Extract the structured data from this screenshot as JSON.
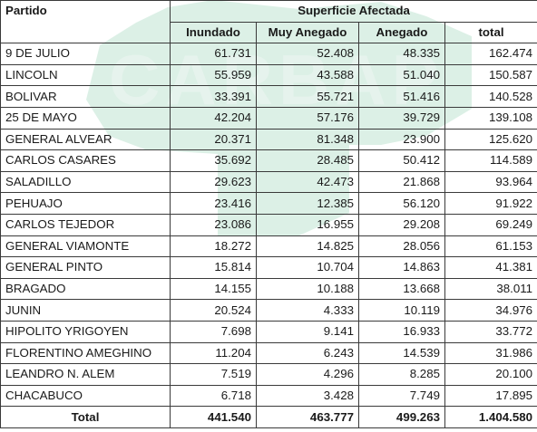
{
  "table": {
    "header": {
      "partido": "Partido",
      "group": "Superficie Afectada",
      "columns": [
        "Inundado",
        "Muy Anegado",
        "Anegado",
        "total"
      ]
    },
    "rows": [
      {
        "partido": "9 DE JULIO",
        "inundado": "61.731",
        "muy_anegado": "52.408",
        "anegado": "48.335",
        "total": "162.474"
      },
      {
        "partido": "LINCOLN",
        "inundado": "55.959",
        "muy_anegado": "43.588",
        "anegado": "51.040",
        "total": "150.587"
      },
      {
        "partido": "BOLIVAR",
        "inundado": "33.391",
        "muy_anegado": "55.721",
        "anegado": "51.416",
        "total": "140.528"
      },
      {
        "partido": "25 DE MAYO",
        "inundado": "42.204",
        "muy_anegado": "57.176",
        "anegado": "39.729",
        "total": "139.108"
      },
      {
        "partido": "GENERAL ALVEAR",
        "inundado": "20.371",
        "muy_anegado": "81.348",
        "anegado": "23.900",
        "total": "125.620"
      },
      {
        "partido": "CARLOS CASARES",
        "inundado": "35.692",
        "muy_anegado": "28.485",
        "anegado": "50.412",
        "total": "114.589"
      },
      {
        "partido": "SALADILLO",
        "inundado": "29.623",
        "muy_anegado": "42.473",
        "anegado": "21.868",
        "total": "93.964"
      },
      {
        "partido": "PEHUAJO",
        "inundado": "23.416",
        "muy_anegado": "12.385",
        "anegado": "56.120",
        "total": "91.922"
      },
      {
        "partido": "CARLOS TEJEDOR",
        "inundado": "23.086",
        "muy_anegado": "16.955",
        "anegado": "29.208",
        "total": "69.249"
      },
      {
        "partido": "GENERAL VIAMONTE",
        "inundado": "18.272",
        "muy_anegado": "14.825",
        "anegado": "28.056",
        "total": "61.153"
      },
      {
        "partido": "GENERAL PINTO",
        "inundado": "15.814",
        "muy_anegado": "10.704",
        "anegado": "14.863",
        "total": "41.381"
      },
      {
        "partido": "BRAGADO",
        "inundado": "14.155",
        "muy_anegado": "10.188",
        "anegado": "13.668",
        "total": "38.011"
      },
      {
        "partido": "JUNIN",
        "inundado": "20.524",
        "muy_anegado": "4.333",
        "anegado": "10.119",
        "total": "34.976"
      },
      {
        "partido": "HIPOLITO YRIGOYEN",
        "inundado": "7.698",
        "muy_anegado": "9.141",
        "anegado": "16.933",
        "total": "33.772"
      },
      {
        "partido": "FLORENTINO AMEGHINO",
        "inundado": "11.204",
        "muy_anegado": "6.243",
        "anegado": "14.539",
        "total": "31.986"
      },
      {
        "partido": "LEANDRO N. ALEM",
        "inundado": "7.519",
        "muy_anegado": "4.296",
        "anegado": "8.285",
        "total": "20.100"
      },
      {
        "partido": "CHACABUCO",
        "inundado": "6.718",
        "muy_anegado": "3.428",
        "anegado": "7.749",
        "total": "17.895"
      }
    ],
    "totals": {
      "label": "Total",
      "inundado": "441.540",
      "muy_anegado": "463.777",
      "anegado": "499.263",
      "total": "1.404.580"
    }
  },
  "watermark": {
    "text": "CARBAP",
    "color": "#9fd0b8"
  },
  "colors": {
    "border": "#3a3a3a",
    "text": "#1a1a1a"
  }
}
